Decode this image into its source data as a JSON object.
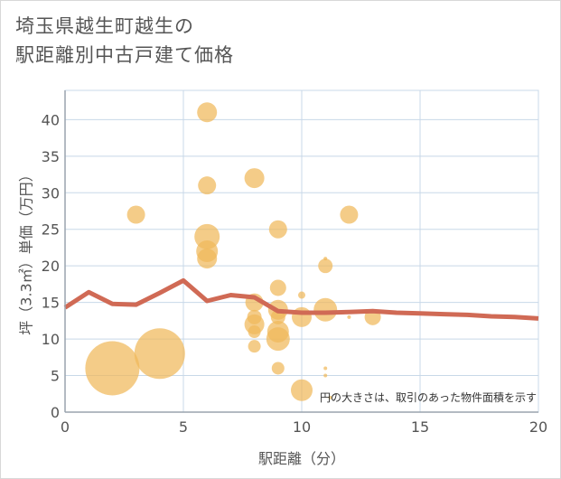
{
  "title": "埼玉県越生町越生の\n駅距離別中古戸建て価格",
  "chart_data": {
    "type": "scatter",
    "xlabel": "駅距離（分）",
    "ylabel": "坪（3.3㎡）単価（万円）",
    "xlim": [
      0,
      20
    ],
    "ylim": [
      0,
      44
    ],
    "xticks": [
      0,
      5,
      10,
      15,
      20
    ],
    "yticks": [
      0,
      5,
      10,
      15,
      20,
      25,
      30,
      35,
      40
    ],
    "grid": true,
    "note": "円の大きさは、取引のあった物件面積を示す",
    "colors": {
      "bubble": "#f0b85a",
      "line": "#d06a55",
      "grid": "#c8d8e8",
      "axis": "#9aa4ae"
    },
    "bubbles": [
      {
        "x": 2,
        "y": 6,
        "size": 3.0
      },
      {
        "x": 3,
        "y": 27,
        "size": 1.0
      },
      {
        "x": 4,
        "y": 8,
        "size": 2.8
      },
      {
        "x": 6,
        "y": 41,
        "size": 1.1
      },
      {
        "x": 6,
        "y": 31,
        "size": 1.0
      },
      {
        "x": 6,
        "y": 24,
        "size": 1.4
      },
      {
        "x": 6,
        "y": 22,
        "size": 1.2
      },
      {
        "x": 6,
        "y": 21,
        "size": 1.1
      },
      {
        "x": 8,
        "y": 32,
        "size": 1.1
      },
      {
        "x": 8,
        "y": 15,
        "size": 1.0
      },
      {
        "x": 8,
        "y": 13,
        "size": 0.8
      },
      {
        "x": 8,
        "y": 12,
        "size": 1.1
      },
      {
        "x": 8,
        "y": 11,
        "size": 0.7
      },
      {
        "x": 8,
        "y": 9,
        "size": 0.7
      },
      {
        "x": 9,
        "y": 25,
        "size": 1.0
      },
      {
        "x": 9,
        "y": 17,
        "size": 0.9
      },
      {
        "x": 9,
        "y": 14,
        "size": 1.1
      },
      {
        "x": 9,
        "y": 13,
        "size": 0.8
      },
      {
        "x": 9,
        "y": 11,
        "size": 1.2
      },
      {
        "x": 9,
        "y": 10,
        "size": 1.3
      },
      {
        "x": 9,
        "y": 6,
        "size": 0.7
      },
      {
        "x": 10,
        "y": 16,
        "size": 0.4
      },
      {
        "x": 10,
        "y": 13,
        "size": 1.1
      },
      {
        "x": 10,
        "y": 3,
        "size": 1.2
      },
      {
        "x": 11,
        "y": 21,
        "size": 0.2
      },
      {
        "x": 11,
        "y": 20,
        "size": 0.8
      },
      {
        "x": 11,
        "y": 14,
        "size": 1.3
      },
      {
        "x": 11,
        "y": 6,
        "size": 0.2
      },
      {
        "x": 11,
        "y": 5,
        "size": 0.2
      },
      {
        "x": 11.2,
        "y": 2,
        "size": 0.2
      },
      {
        "x": 12,
        "y": 27,
        "size": 1.0
      },
      {
        "x": 12,
        "y": 13,
        "size": 0.2
      },
      {
        "x": 13,
        "y": 13,
        "size": 0.9
      }
    ],
    "trend": {
      "x": [
        0,
        1,
        2,
        3,
        4,
        5,
        6,
        7,
        8,
        9,
        10,
        11,
        12,
        13,
        14,
        15,
        16,
        17,
        18,
        19,
        20
      ],
      "y": [
        14.3,
        16.4,
        14.8,
        14.7,
        16.3,
        18.0,
        15.2,
        16.0,
        15.7,
        13.8,
        13.6,
        13.6,
        13.7,
        13.8,
        13.6,
        13.5,
        13.4,
        13.3,
        13.1,
        13.0,
        12.8
      ]
    }
  }
}
